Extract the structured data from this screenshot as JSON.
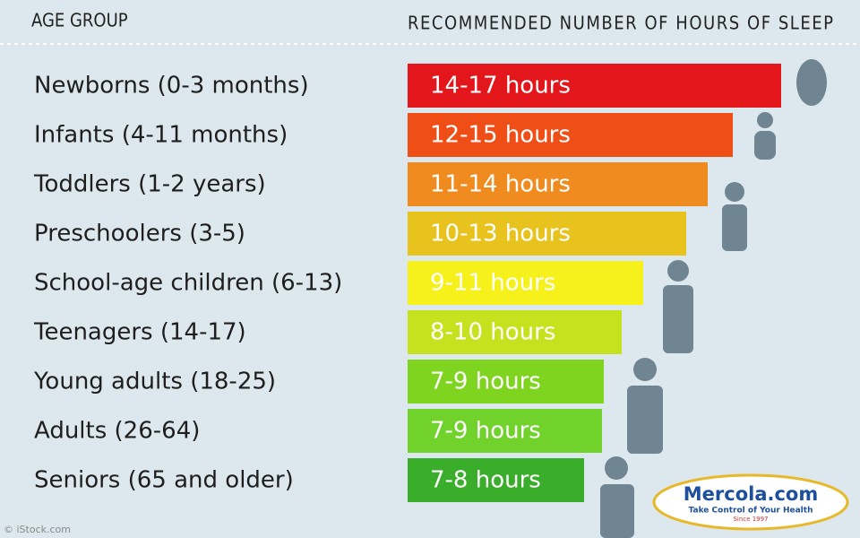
{
  "header": {
    "left": "AGE GROUP",
    "right": "RECOMMENDED NUMBER OF HOURS OF SLEEP"
  },
  "rows": [
    {
      "group": "Newborns (0-3 months)",
      "hours": "14-17 hours",
      "color": "#e3161c"
    },
    {
      "group": "Infants (4-11 months)",
      "hours": "12-15 hours",
      "color": "#ef4e17"
    },
    {
      "group": "Toddlers (1-2 years)",
      "hours": "11-14 hours",
      "color": "#ef8b1f"
    },
    {
      "group": "Preschoolers (3-5)",
      "hours": "10-13 hours",
      "color": "#e8c31d"
    },
    {
      "group": "School-age children (6-13)",
      "hours": "9-11 hours",
      "color": "#f6f11a"
    },
    {
      "group": "Teenagers (14-17)",
      "hours": "8-10 hours",
      "color": "#c6e21f"
    },
    {
      "group": "Young adults (18-25)",
      "hours": "7-9 hours",
      "color": "#7fd41f"
    },
    {
      "group": "Adults (26-64)",
      "hours": "7-9 hours",
      "color": "#70d22b"
    },
    {
      "group": "Seniors (65 and older)",
      "hours": "7-8 hours",
      "color": "#3aad2b"
    }
  ],
  "logo": {
    "name": "Mercola.com",
    "tagline": "Take Control of Your Health",
    "since": "Since 1997"
  },
  "credit": "© iStock.com"
}
